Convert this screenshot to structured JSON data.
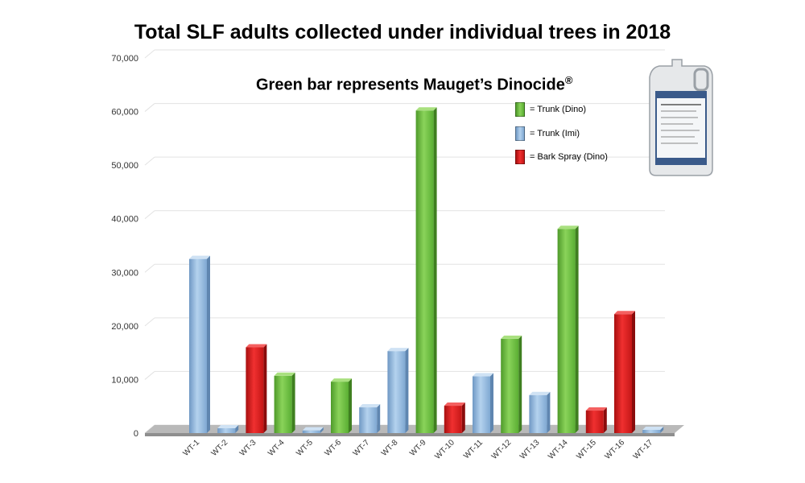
{
  "title": "Total SLF adults collected under individual trees in 2018",
  "subtitle": "Green bar represents Mauget’s Dinocide",
  "subtitle_mark": "®",
  "legend": [
    {
      "label": "= Trunk (Dino)",
      "color": "#6cc43b"
    },
    {
      "label": "= Trunk (Imi)",
      "color": "#8fb6dc"
    },
    {
      "label": "= Bark Spray (Dino)",
      "color": "#e01c1c"
    }
  ],
  "chart_data": {
    "type": "bar",
    "categories": [
      "WT-1",
      "WT-2",
      "WT-3",
      "WT-4",
      "WT-5",
      "WT-6",
      "WT-7",
      "WT-8",
      "WT-9",
      "WT-10",
      "WT-11",
      "WT-12",
      "WT-13",
      "WT-14",
      "WT-15",
      "WT-16",
      "WT-17"
    ],
    "values": [
      32500,
      900,
      16000,
      10700,
      500,
      9600,
      4800,
      15300,
      60200,
      5100,
      10600,
      17600,
      7100,
      38100,
      4200,
      22200,
      600
    ],
    "bar_treatment": [
      "Trunk (Imi)",
      "Trunk (Imi)",
      "Bark Spray (Dino)",
      "Trunk (Dino)",
      "Trunk (Imi)",
      "Trunk (Dino)",
      "Trunk (Imi)",
      "Trunk (Imi)",
      "Trunk (Dino)",
      "Bark Spray (Dino)",
      "Trunk (Imi)",
      "Trunk (Dino)",
      "Trunk (Imi)",
      "Trunk (Dino)",
      "Bark Spray (Dino)",
      "Bark Spray (Dino)",
      "Trunk (Imi)"
    ],
    "series_colors": {
      "Trunk (Dino)": "#6cc43b",
      "Trunk (Imi)": "#8fb6dc",
      "Bark Spray (Dino)": "#e01c1c"
    },
    "yticks": [
      "0",
      "10,000",
      "20,000",
      "30,000",
      "40,000",
      "50,000",
      "60,000",
      "70,000"
    ],
    "ylim": [
      0,
      70000
    ],
    "grid": true,
    "legend_position": "top-right"
  }
}
